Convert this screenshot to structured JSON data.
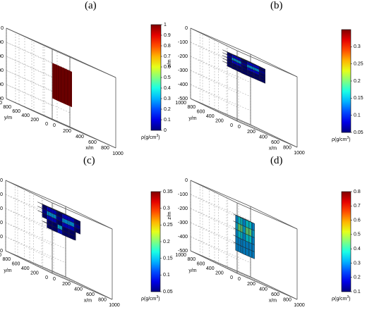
{
  "chart_data": [
    {
      "type": "voxel3d",
      "panel_label": "(a)",
      "zlabel": "z/m",
      "ylabel": "y/m",
      "xlabel": "x/m",
      "xticks": [
        "0",
        "200",
        "400",
        "600",
        "800",
        "1000"
      ],
      "yticks": [
        "0",
        "200",
        "400",
        "600",
        "800",
        "1000"
      ],
      "zticks": [
        "0",
        "-100",
        "-200",
        "-300",
        "-400",
        "-500"
      ],
      "xlim": [
        0,
        1000
      ],
      "ylim": [
        0,
        1000
      ],
      "zlim": [
        -500,
        0
      ],
      "colorbar": {
        "label_main": "ρ(g/cm",
        "label_sup": "3",
        "label_end": ")",
        "min": 0,
        "max": 1,
        "ticks": [
          "0",
          "0.1",
          "0.2",
          "0.3",
          "0.4",
          "0.5",
          "0.6",
          "0.7",
          "0.8",
          "0.9",
          "1"
        ]
      },
      "body": {
        "x": [
          400,
          600
        ],
        "y": [
          400,
          600
        ],
        "z": [
          -350,
          -100
        ],
        "density": 1.0
      }
    },
    {
      "type": "voxel3d",
      "panel_label": "(b)",
      "zlabel": "z/m",
      "ylabel": "y/m",
      "xlabel": "x/m",
      "xticks": [
        "0",
        "200",
        "400",
        "600",
        "800",
        "1000"
      ],
      "yticks": [
        "0",
        "200",
        "400",
        "600",
        "800",
        "1000"
      ],
      "zticks": [
        "0",
        "-100",
        "-200",
        "-300",
        "-400",
        "-500"
      ],
      "xlim": [
        0,
        1000
      ],
      "ylim": [
        0,
        1000
      ],
      "zlim": [
        -500,
        0
      ],
      "colorbar": {
        "label_main": "ρ(g/cm",
        "label_sup": "3",
        "label_end": ")",
        "min": 0.05,
        "max": 0.35,
        "ticks": [
          "0.05",
          "0.1",
          "0.15",
          "0.2",
          "0.25",
          "0.3"
        ]
      },
      "body": {
        "x": [
          300,
          700
        ],
        "y": [
          300,
          700
        ],
        "z": [
          -150,
          -50
        ],
        "density_range": [
          0.05,
          0.35
        ]
      }
    },
    {
      "type": "voxel3d",
      "panel_label": "(c)",
      "zlabel": "z/m",
      "ylabel": "y/m",
      "xlabel": "x/m",
      "xticks": [
        "0",
        "200",
        "400",
        "600",
        "800",
        "1000"
      ],
      "yticks": [
        "0",
        "200",
        "400",
        "600",
        "800",
        "1000"
      ],
      "zticks": [
        "0",
        "-100",
        "-200",
        "-300",
        "-400",
        "-500"
      ],
      "xlim": [
        0,
        1000
      ],
      "ylim": [
        0,
        1000
      ],
      "zlim": [
        -500,
        0
      ],
      "colorbar": {
        "label_main": "ρ(g/cm",
        "label_sup": "3",
        "label_end": ")",
        "min": 0.05,
        "max": 0.35,
        "ticks": [
          "0.05",
          "0.1",
          "0.15",
          "0.2",
          "0.25",
          "0.3",
          "0.35"
        ]
      },
      "body": {
        "x": [
          300,
          700
        ],
        "y": [
          300,
          700
        ],
        "z": [
          -200,
          -50
        ],
        "density_range": [
          0.05,
          0.35
        ]
      }
    },
    {
      "type": "voxel3d",
      "panel_label": "(d)",
      "zlabel": "z/m",
      "ylabel": "y/m",
      "xlabel": "x/m",
      "xticks": [
        "0",
        "200",
        "400",
        "600",
        "800",
        "1000"
      ],
      "yticks": [
        "0",
        "200",
        "400",
        "600",
        "800",
        "1000"
      ],
      "zticks": [
        "0",
        "-100",
        "-200",
        "-300",
        "-400",
        "-500"
      ],
      "xlim": [
        0,
        1000
      ],
      "ylim": [
        0,
        1000
      ],
      "zlim": [
        -500,
        0
      ],
      "colorbar": {
        "label_main": "ρ(g/cm",
        "label_sup": "3",
        "label_end": ")",
        "min": 0.1,
        "max": 0.8,
        "ticks": [
          "0.1",
          "0.2",
          "0.3",
          "0.4",
          "0.5",
          "0.6",
          "0.7",
          "0.8"
        ]
      },
      "body": {
        "x": [
          400,
          600
        ],
        "y": [
          400,
          600
        ],
        "z": [
          -350,
          -100
        ],
        "density_range": [
          0.3,
          0.8
        ]
      }
    }
  ]
}
